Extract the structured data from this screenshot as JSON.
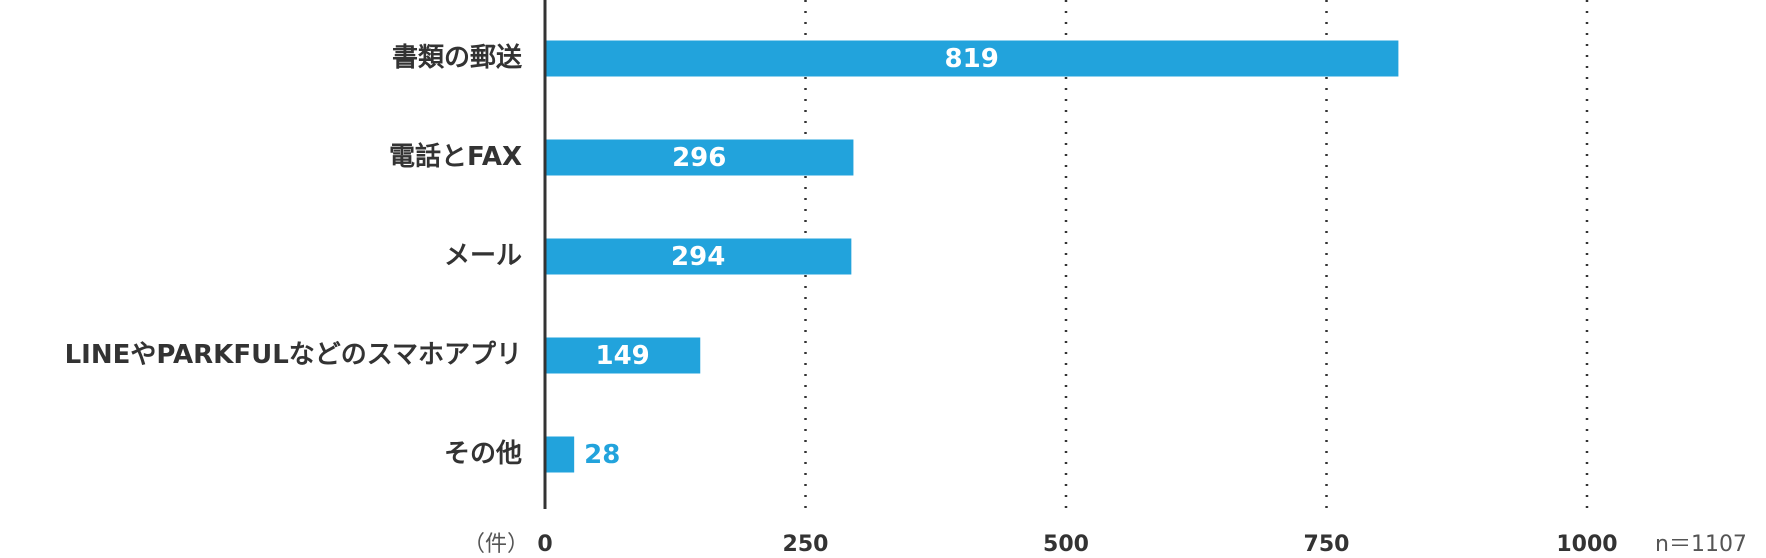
{
  "chart_data": {
    "type": "hbar",
    "categories": [
      "書類の郵送",
      "電話とFAX",
      "メール",
      "LINEやPARKFULなどのスマホアプリ",
      "その他"
    ],
    "values": [
      819,
      296,
      294,
      149,
      28
    ],
    "color": "#22a3dc",
    "xlim": [
      0,
      1000
    ],
    "xticks": [
      0,
      250,
      500,
      750,
      1000
    ],
    "grid": true,
    "unit_label": "（件）",
    "note": "n＝1107"
  }
}
